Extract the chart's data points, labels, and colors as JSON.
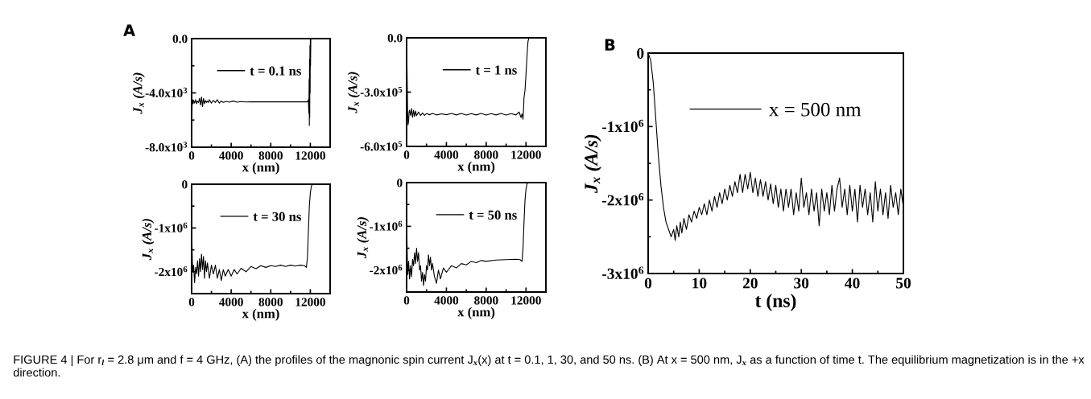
{
  "chart_data": [
    {
      "type": "line",
      "xlabel": "x (nm)",
      "ylabel": "J$_{x}$ (A/s)",
      "annotations": [
        "A"
      ],
      "legend": "top right",
      "grid": false,
      "xlim": [
        0,
        14000
      ],
      "xticks": [
        0,
        {
          "value": 2000,
          "label": null
        },
        4000,
        {
          "value": 6000,
          "label": null
        },
        8000,
        {
          "value": 10000,
          "label": null
        },
        12000
      ],
      "ylim": [
        -8000,
        0
      ],
      "yticks": [
        {
          "value": 0,
          "label": "0.0"
        },
        {
          "value": -2000,
          "label": null
        },
        {
          "value": -4000,
          "label": "-4.0x10$^{3}$"
        },
        {
          "value": -6000,
          "label": null
        },
        {
          "value": -8000,
          "label": "-8.0x10$^{3}$"
        }
      ],
      "series": [
        {
          "name": "t = 0.1 ns",
          "color": "#000000",
          "x": [
            0,
            30,
            60,
            100,
            150,
            200,
            300,
            400,
            500,
            600,
            700,
            800,
            900,
            1000,
            1100,
            1200,
            1300,
            1400,
            1500,
            1600,
            1700,
            1800,
            2000,
            2200,
            2400,
            2600,
            2800,
            3000,
            3200,
            3500,
            3800,
            4200,
            4600,
            5000,
            5500,
            6000,
            7000,
            8000,
            9000,
            10000,
            11000,
            11700,
            11800,
            11850,
            11880,
            11900,
            11920,
            11940,
            11960,
            11980,
            12000,
            12020,
            12050,
            12100,
            12500,
            13000,
            14000
          ],
          "values": [
            -4200,
            -5800,
            -4600,
            -4500,
            -4800,
            -4550,
            -4750,
            -4500,
            -4800,
            -4600,
            -4700,
            -4400,
            -4900,
            -4300,
            -5000,
            -4400,
            -4800,
            -4550,
            -4700,
            -4600,
            -4700,
            -4500,
            -4750,
            -4550,
            -4700,
            -4500,
            -4750,
            -4600,
            -4700,
            -4620,
            -4680,
            -4600,
            -4680,
            -4640,
            -4670,
            -4650,
            -4660,
            -4660,
            -4660,
            -4660,
            -4660,
            -4660,
            -4500,
            -5500,
            -3000,
            -6400,
            -1500,
            -5800,
            -500,
            -4000,
            0,
            -2000,
            0,
            0,
            0,
            0,
            0
          ]
        }
      ]
    },
    {
      "type": "line",
      "xlabel": "x (nm)",
      "ylabel": "J$_{x}$ (A/s)",
      "legend": "top right",
      "grid": false,
      "xlim": [
        0,
        14000
      ],
      "xticks": [
        0,
        {
          "value": 2000,
          "label": null
        },
        4000,
        {
          "value": 6000,
          "label": null
        },
        8000,
        {
          "value": 10000,
          "label": null
        },
        12000
      ],
      "ylim": [
        -600000,
        0
      ],
      "yticks": [
        {
          "value": 0,
          "label": "0.0"
        },
        {
          "value": -300000,
          "label": "-3.0x10$^{5}$"
        },
        {
          "value": -600000,
          "label": "-6.0x10$^{5}$"
        }
      ],
      "series": [
        {
          "name": "t = 1 ns",
          "color": "#000000",
          "x": [
            0,
            50,
            100,
            150,
            200,
            250,
            300,
            400,
            500,
            600,
            700,
            800,
            900,
            1000,
            1200,
            1400,
            1600,
            1800,
            2000,
            2300,
            2600,
            3000,
            3500,
            4000,
            4500,
            5000,
            5500,
            6000,
            6500,
            7000,
            7500,
            8000,
            8500,
            9000,
            9500,
            10000,
            10500,
            11000,
            11300,
            11500,
            11600,
            11700,
            11750,
            11800,
            11900,
            12000,
            12100,
            12200,
            12300,
            12500,
            14000
          ],
          "values": [
            -20000,
            -200000,
            -400000,
            -480000,
            -460000,
            -410000,
            -400000,
            -430000,
            -390000,
            -440000,
            -400000,
            -435000,
            -405000,
            -430000,
            -410000,
            -430000,
            -415000,
            -428000,
            -418000,
            -425000,
            -418000,
            -426000,
            -420000,
            -425000,
            -418000,
            -426000,
            -418000,
            -427000,
            -419000,
            -426000,
            -418000,
            -427000,
            -419000,
            -426000,
            -418000,
            -427000,
            -419000,
            -426000,
            -410000,
            -440000,
            -420000,
            -450000,
            -400000,
            -330000,
            -290000,
            -200000,
            -100000,
            -20000,
            0,
            0,
            0
          ]
        }
      ]
    },
    {
      "type": "line",
      "xlabel": "x (nm)",
      "ylabel": "J$_{x}$ (A/s)",
      "legend": "top right",
      "grid": false,
      "xlim": [
        0,
        14000
      ],
      "xticks": [
        0,
        {
          "value": 2000,
          "label": null
        },
        4000,
        {
          "value": 6000,
          "label": null
        },
        8000,
        {
          "value": 10000,
          "label": null
        },
        12000
      ],
      "ylim": [
        -2500000,
        0
      ],
      "yticks": [
        0,
        {
          "value": -500000,
          "label": null
        },
        {
          "value": -1000000,
          "label": "-1x10$^{6}$"
        },
        {
          "value": -1500000,
          "label": null
        },
        {
          "value": -2000000,
          "label": "-2x10$^{6}$"
        }
      ],
      "series": [
        {
          "name": "t = 30 ns",
          "color": "#000000",
          "x": [
            0,
            40,
            80,
            120,
            200,
            300,
            400,
            500,
            600,
            700,
            800,
            900,
            1000,
            1100,
            1200,
            1300,
            1400,
            1500,
            1600,
            1800,
            2000,
            2200,
            2400,
            2600,
            2800,
            3000,
            3200,
            3400,
            3700,
            4000,
            4300,
            4600,
            5000,
            5500,
            6000,
            6500,
            7000,
            7500,
            8000,
            8500,
            9000,
            9500,
            10000,
            10500,
            11000,
            11400,
            11600,
            11700,
            11800,
            11900,
            12000,
            12100,
            12200,
            12400,
            14000
          ],
          "values": [
            -500000,
            -1400000,
            -1800000,
            -2000000,
            -1850000,
            -2250000,
            -1900000,
            -2050000,
            -1750000,
            -2100000,
            -1700000,
            -2000000,
            -1600000,
            -1950000,
            -1650000,
            -2150000,
            -1750000,
            -2000000,
            -1800000,
            -2150000,
            -1850000,
            -2050000,
            -1850000,
            -2150000,
            -1950000,
            -2200000,
            -1950000,
            -2100000,
            -1950000,
            -2100000,
            -1950000,
            -2050000,
            -1920000,
            -2000000,
            -1880000,
            -1930000,
            -1860000,
            -1900000,
            -1860000,
            -1880000,
            -1850000,
            -1880000,
            -1850000,
            -1870000,
            -1850000,
            -1860000,
            -1900000,
            -1700000,
            -1100000,
            -500000,
            -200000,
            -50000,
            0,
            0,
            0
          ]
        }
      ]
    },
    {
      "type": "line",
      "xlabel": "x (nm)",
      "ylabel": "J$_{x}$ (A/s)",
      "legend": "top right",
      "grid": false,
      "xlim": [
        0,
        14000
      ],
      "xticks": [
        0,
        {
          "value": 2000,
          "label": null
        },
        4000,
        {
          "value": 6000,
          "label": null
        },
        8000,
        {
          "value": 10000,
          "label": null
        },
        12000
      ],
      "ylim": [
        -2500000,
        0
      ],
      "yticks": [
        0,
        {
          "value": -500000,
          "label": null
        },
        {
          "value": -1000000,
          "label": "-1x10$^{6}$"
        },
        {
          "value": -1500000,
          "label": null
        },
        {
          "value": -2000000,
          "label": "-2x10$^{6}$"
        }
      ],
      "series": [
        {
          "name": "t = 50 ns",
          "color": "#000000",
          "x": [
            0,
            40,
            80,
            120,
            200,
            300,
            400,
            500,
            600,
            700,
            800,
            900,
            1000,
            1100,
            1200,
            1300,
            1400,
            1500,
            1600,
            1700,
            1800,
            1900,
            2000,
            2100,
            2200,
            2300,
            2400,
            2500,
            2600,
            2800,
            3000,
            3200,
            3400,
            3700,
            4000,
            4500,
            5000,
            5500,
            6000,
            6500,
            7000,
            7500,
            8000,
            9000,
            10000,
            11000,
            11400,
            11600,
            11700,
            11800,
            11900,
            12000,
            12100,
            12200,
            12400,
            14000
          ],
          "values": [
            -400000,
            -1300000,
            -1800000,
            -2100000,
            -1800000,
            -2200000,
            -1900000,
            -2150000,
            -1750000,
            -1900000,
            -1600000,
            -1850000,
            -1500000,
            -1800000,
            -1600000,
            -2000000,
            -1900000,
            -2250000,
            -2050000,
            -2350000,
            -2100000,
            -2250000,
            -1900000,
            -2000000,
            -1650000,
            -1900000,
            -1700000,
            -2000000,
            -1850000,
            -2150000,
            -2300000,
            -2000000,
            -2200000,
            -1950000,
            -2050000,
            -1900000,
            -1950000,
            -1850000,
            -1880000,
            -1800000,
            -1830000,
            -1780000,
            -1800000,
            -1770000,
            -1760000,
            -1750000,
            -1760000,
            -1800000,
            -1500000,
            -900000,
            -400000,
            -150000,
            -30000,
            0,
            0,
            0
          ]
        }
      ]
    },
    {
      "type": "line",
      "xlabel": "t (ns)",
      "ylabel": "J$_{x}$ (A/s)",
      "annotations": [
        "B",
        "FIGURE 4 | For r$_{l}$ = 2.8 μm and f = 4 GHz, (A) the profiles of the magnonic spin current J$_{x}$(x) at t = 0.1, 1, 30, and 50 ns. (B) At x = 500 nm, J$_{x}$ as a function of time t. The equilibrium magnetization is in the +x direction."
      ],
      "legend": "top",
      "grid": false,
      "xlim": [
        0,
        50
      ],
      "xticks": [
        0,
        {
          "value": 5,
          "label": null
        },
        10,
        {
          "value": 15,
          "label": null
        },
        20,
        {
          "value": 25,
          "label": null
        },
        30,
        {
          "value": 35,
          "label": null
        },
        40,
        {
          "value": 45,
          "label": null
        },
        50
      ],
      "ylim": [
        -3000000,
        0
      ],
      "yticks": [
        0,
        {
          "value": -500000,
          "label": null
        },
        {
          "value": -1000000,
          "label": "-1x10$^{6}$"
        },
        {
          "value": -1500000,
          "label": null
        },
        {
          "value": -2000000,
          "label": "-2x10$^{6}$"
        },
        {
          "value": -2500000,
          "label": null
        },
        {
          "value": -3000000,
          "label": "-3x10$^{6}$"
        }
      ],
      "series": [
        {
          "name": "x = 500 nm",
          "color": "#000000",
          "x": [
            0,
            0.5,
            1,
            1.5,
            2,
            2.5,
            3,
            3.5,
            4,
            4.5,
            5,
            5.3,
            5.6,
            6,
            6.3,
            6.6,
            7,
            7.5,
            8,
            8.5,
            9,
            9.5,
            10,
            10.5,
            11,
            11.5,
            12,
            12.5,
            13,
            13.5,
            14,
            14.5,
            15,
            15.5,
            16,
            16.5,
            17,
            17.5,
            18,
            18.5,
            19,
            19.5,
            20,
            20.5,
            21,
            21.5,
            22,
            22.5,
            23,
            23.5,
            24,
            24.5,
            25,
            25.5,
            26,
            26.5,
            27,
            27.5,
            28,
            28.5,
            29,
            29.5,
            30,
            30.5,
            31,
            31.5,
            32,
            32.5,
            33,
            33.5,
            34,
            34.5,
            35,
            35.5,
            36,
            36.5,
            37,
            37.5,
            38,
            38.5,
            39,
            39.5,
            40,
            40.5,
            41,
            41.5,
            42,
            42.5,
            43,
            43.5,
            44,
            44.5,
            45,
            45.5,
            46,
            46.5,
            47,
            47.5,
            48,
            48.5,
            49,
            49.5,
            50
          ],
          "values": [
            0,
            -100000.0,
            -400000.0,
            -900000.0,
            -1400000.0,
            -1800000.0,
            -2100000.0,
            -2300000.0,
            -2400000.0,
            -2500000.0,
            -2400000.0,
            -2550000.0,
            -2350000.0,
            -2500000.0,
            -2300000.0,
            -2450000.0,
            -2250000.0,
            -2400000.0,
            -2200000.0,
            -2300000.0,
            -2150000.0,
            -2250000.0,
            -2100000.0,
            -2200000.0,
            -2050000.0,
            -2200000.0,
            -2000000.0,
            -2150000.0,
            -1950000.0,
            -2100000.0,
            -1900000.0,
            -2050000.0,
            -1850000.0,
            -2000000.0,
            -1800000.0,
            -1950000.0,
            -1750000.0,
            -1900000.0,
            -1650000.0,
            -1900000.0,
            -1650000.0,
            -1850000.0,
            -1620000.0,
            -1900000.0,
            -1700000.0,
            -1950000.0,
            -1720000.0,
            -1950000.0,
            -1750000.0,
            -2000000.0,
            -1780000.0,
            -2050000.0,
            -1800000.0,
            -2100000.0,
            -1850000.0,
            -2150000.0,
            -1850000.0,
            -2100000.0,
            -1850000.0,
            -2200000.0,
            -1900000.0,
            -2150000.0,
            -1700000.0,
            -2100000.0,
            -1900000.0,
            -2200000.0,
            -1850000.0,
            -2150000.0,
            -1900000.0,
            -2350000.0,
            -1850000.0,
            -2150000.0,
            -1900000.0,
            -2200000.0,
            -1800000.0,
            -2150000.0,
            -1850000.0,
            -1700000.0,
            -2100000.0,
            -1850000.0,
            -2200000.0,
            -1800000.0,
            -2150000.0,
            -1850000.0,
            -2300000.0,
            -1800000.0,
            -2100000.0,
            -1850000.0,
            -2200000.0,
            -1900000.0,
            -2300000.0,
            -1750000.0,
            -2150000.0,
            -1850000.0,
            -2200000.0,
            -1900000.0,
            -2250000.0,
            -1800000.0,
            -2100000.0,
            -1900000.0,
            -2200000.0,
            -1850000.0,
            -2100000.0
          ]
        }
      ]
    }
  ]
}
